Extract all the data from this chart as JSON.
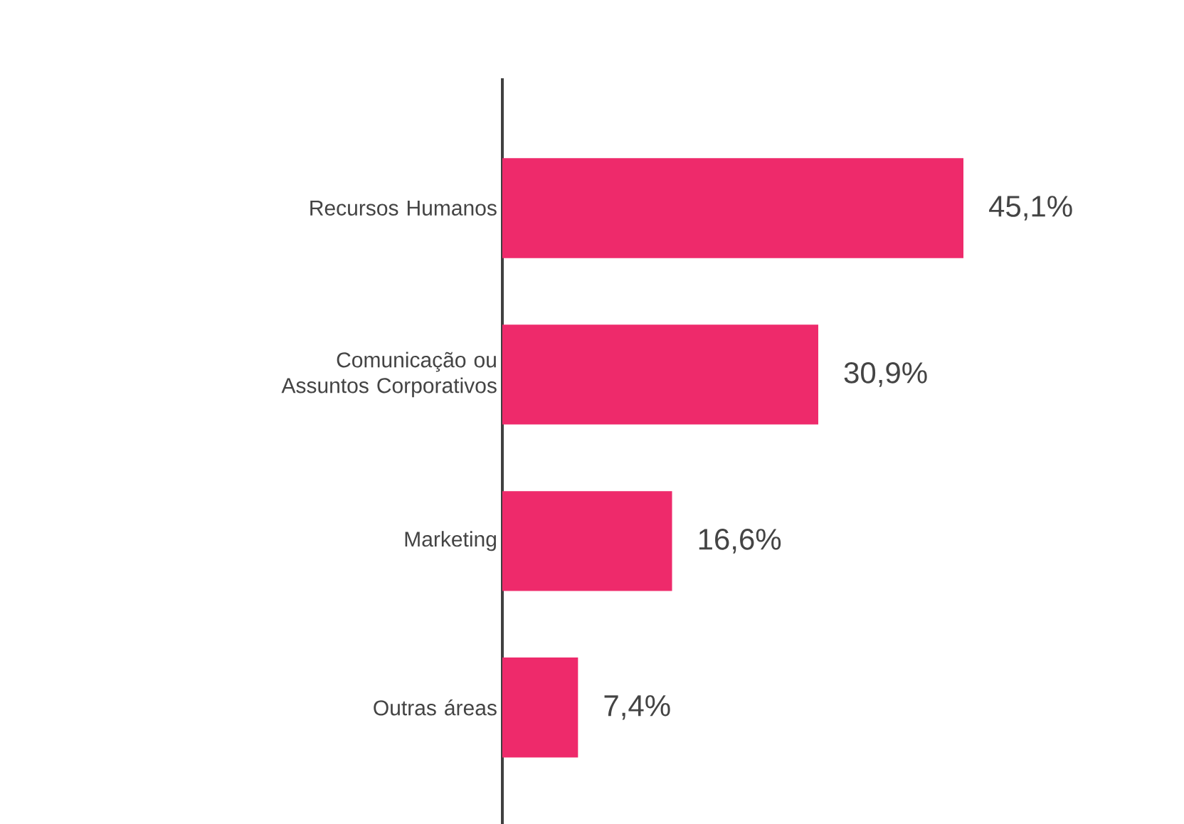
{
  "chart_data": {
    "type": "bar",
    "orientation": "horizontal",
    "categories": [
      "Recursos Humanos",
      "Comunicação ou Assuntos Corporativos",
      "Marketing",
      "Outras áreas"
    ],
    "values": [
      45.1,
      30.9,
      16.6,
      7.4
    ],
    "value_labels": [
      "45,1%",
      "30,9%",
      "16,6%",
      "7,4%"
    ],
    "color": "#ee2a6b",
    "tick_labels": "y"
  }
}
